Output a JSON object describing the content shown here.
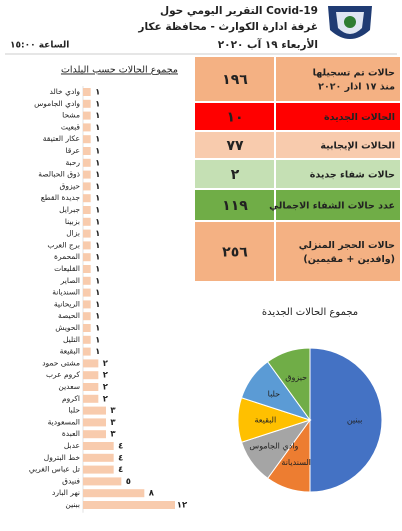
{
  "header": {
    "title": "التقرير اليومي حول Covid-19",
    "subtitle": "غرفة ادارة الكوارث - محافظة عكار",
    "date": "الأربعاء ١٩ آب ٢٠٢٠",
    "time": "الساعة ١٥:٠٠"
  },
  "stats": [
    {
      "label": [
        "حالات تم تسجيلها",
        "منذ ١٧ اذار ٢٠٢٠"
      ],
      "value": "١٩٦",
      "color": "#f4b183"
    },
    {
      "label": [
        "الحالات الجديدة"
      ],
      "value": "١٠",
      "color": "#ff0000"
    },
    {
      "label": [
        "الحالات الإيجابية"
      ],
      "value": "٧٧",
      "color": "#f8cbad"
    },
    {
      "label": [
        "حالات شفاء جديدة"
      ],
      "value": "٢",
      "color": "#c5e0b4"
    },
    {
      "label": [
        "عدد حالات الشفاء الاجمالي"
      ],
      "value": "١١٩",
      "color": "#70ad47"
    },
    {
      "label": [
        "حالات الحجر المنزلي",
        "(وافدين + مقيمين)"
      ],
      "value": "٢٥٦",
      "color": "#f4b183"
    }
  ],
  "chart_data": [
    {
      "type": "bar",
      "title": "مجموع الحالات حسب البلدات",
      "color": "#f8cbad",
      "categories": [
        "وادي خالد",
        "وادي الجاموس",
        "مشحا",
        "قبعيت",
        "عكار العتيقة",
        "عرقا",
        "رحبة",
        "ذوق الحبالصة",
        "حيزوق",
        "جديدة القطع",
        "جبرايل",
        "بزبينا",
        "بزال",
        "برج العرب",
        "المحمرة",
        "القليعات",
        "الصاير",
        "السنديانة",
        "الريحانية",
        "الحيصة",
        "الحويش",
        "التليل",
        "البقيعة",
        "مشتى حمود",
        "كروم عرب",
        "سعدين",
        "اكروم",
        "حلبا",
        "المسعودية",
        "العبدة",
        "عدبل",
        "خط البترول",
        "تل عباس الغربي",
        "فنيدق",
        "نهر البارد",
        "ببنين"
      ],
      "values": [
        1,
        1,
        1,
        1,
        1,
        1,
        1,
        1,
        1,
        1,
        1,
        1,
        1,
        1,
        1,
        1,
        1,
        1,
        1,
        1,
        1,
        1,
        1,
        2,
        2,
        2,
        2,
        3,
        3,
        3,
        4,
        4,
        4,
        5,
        8,
        12
      ],
      "value_labels": [
        "١",
        "١",
        "١",
        "١",
        "١",
        "١",
        "١",
        "١",
        "١",
        "١",
        "١",
        "١",
        "١",
        "١",
        "١",
        "١",
        "١",
        "١",
        "١",
        "١",
        "١",
        "١",
        "١",
        "٢",
        "٢",
        "٢",
        "٢",
        "٣",
        "٣",
        "٣",
        "٤",
        "٤",
        "٤",
        "٥",
        "٨",
        "١٢"
      ]
    },
    {
      "type": "pie",
      "title": "مجموع الحالات الجديدة",
      "categories": [
        "ببنين",
        "السنديانة",
        "وادي الجاموس",
        "البقيعة",
        "حلبا",
        "حيزوق"
      ],
      "values": [
        5,
        1,
        1,
        1,
        1,
        1
      ],
      "colors": [
        "#4472c4",
        "#ed7d31",
        "#a5a5a5",
        "#ffc000",
        "#5b9bd5",
        "#70ad47"
      ]
    }
  ]
}
